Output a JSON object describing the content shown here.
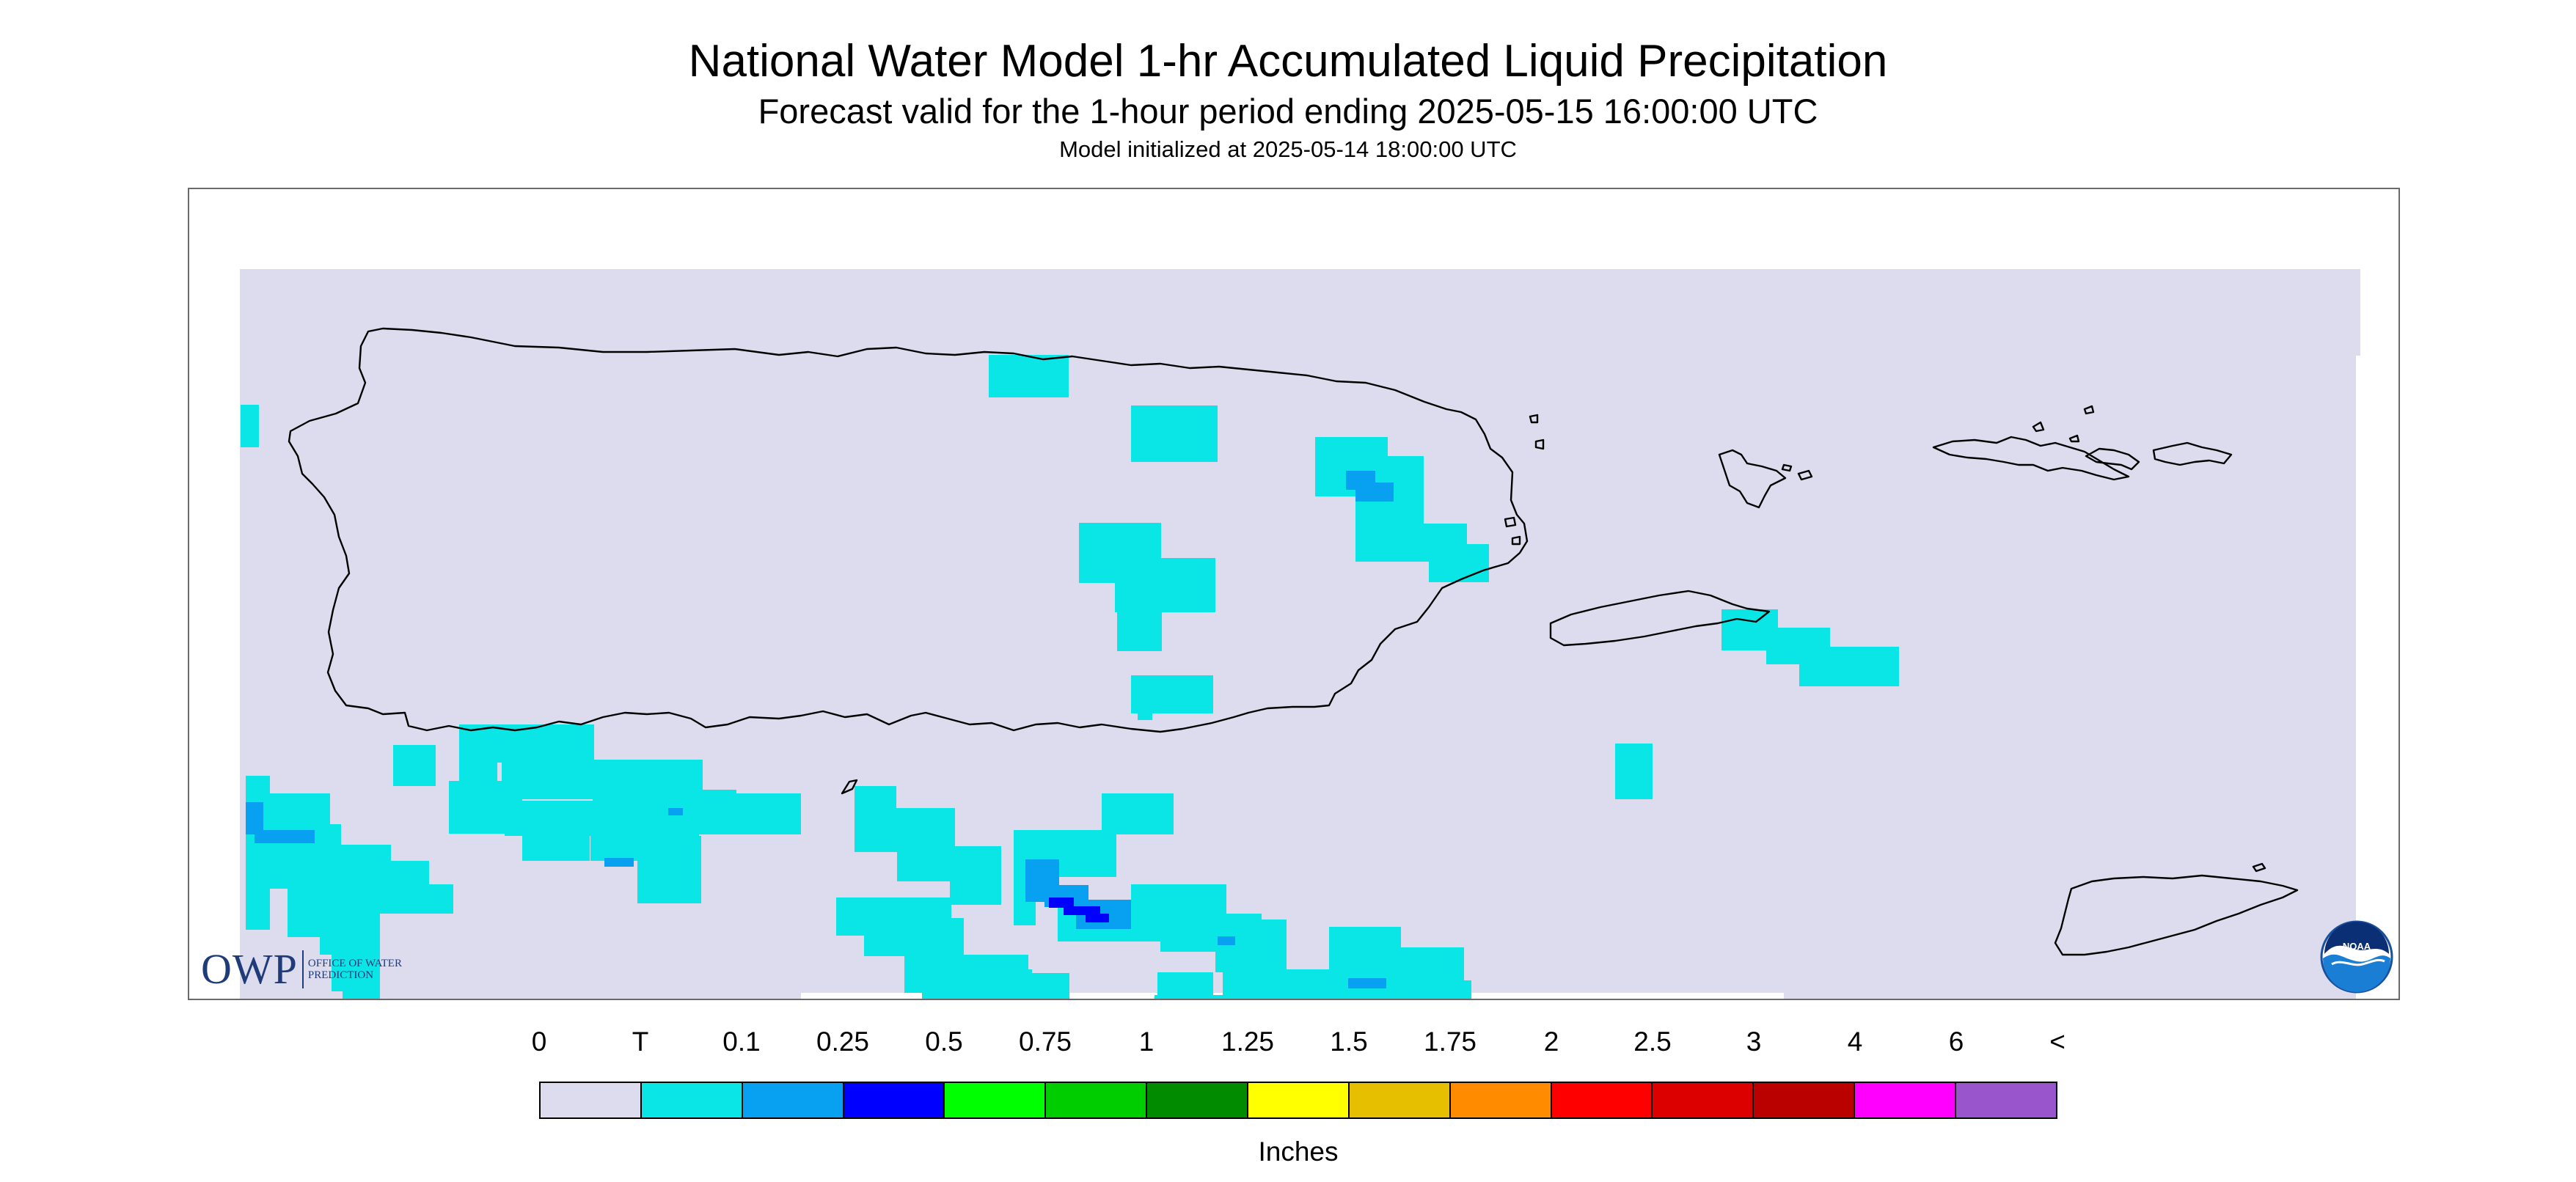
{
  "header": {
    "title": "National Water Model 1-hr Accumulated Liquid Precipitation",
    "subtitle": "Forecast valid for the 1-hour period ending 2025-05-15 16:00:00 UTC",
    "initialized": "Model initialized at 2025-05-14 18:00:00 UTC"
  },
  "legend": {
    "tick_labels": [
      "0",
      "T",
      "0.1",
      "0.25",
      "0.5",
      "0.75",
      "1",
      "1.25",
      "1.5",
      "1.75",
      "2",
      "2.5",
      "3",
      "4",
      "6",
      "<"
    ],
    "colors": [
      "#dcdcee",
      "#0ae6e6",
      "#08a0f0",
      "#0000ff",
      "#00ff00",
      "#00cd00",
      "#008b00",
      "#ffff00",
      "#e6c000",
      "#ff8c00",
      "#ff0000",
      "#dd0000",
      "#bb0000",
      "#ff00ff",
      "#9955cc"
    ],
    "units": "Inches"
  },
  "logos": {
    "owp_text": "OWP",
    "owp_subtext": "OFFICE OF WATER PREDICTION",
    "noaa_text": "NOAA"
  },
  "map": {
    "background_color": "#dcdcee",
    "coastline_color": "#000000",
    "regions": [
      "Puerto Rico",
      "Vieques",
      "Culebra",
      "US Virgin Islands (St. Thomas, St. John)",
      "St. Croix"
    ]
  }
}
